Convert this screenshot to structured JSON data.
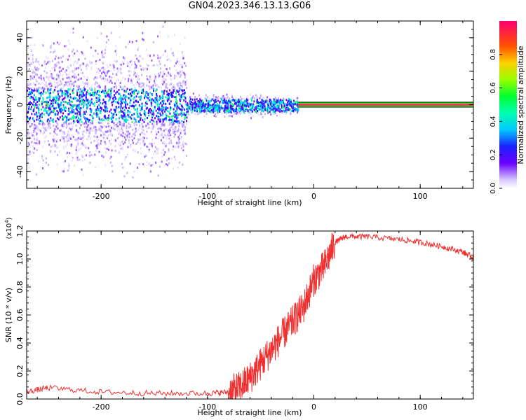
{
  "title": "GN04.2023.346.13.13.G06",
  "colors": {
    "axis": "#000000",
    "snr_line": "#f03030",
    "spectral_band": "#ff2d55"
  },
  "colorbar": {
    "label": "Normalized spectral amplitude",
    "range": [
      0,
      1
    ],
    "ticks": [
      "0.0",
      "0.2",
      "0.4",
      "0.6",
      "0.8"
    ],
    "tick_values": [
      0.0,
      0.2,
      0.4,
      0.6,
      0.8
    ],
    "colormap": "rainbow"
  },
  "chart_data": [
    {
      "type": "heatmap",
      "name": "spectrogram",
      "xlabel": "Height of straight line (km)",
      "ylabel": "Frequency (Hz)",
      "xlim": [
        -270,
        150
      ],
      "ylim": [
        -50,
        50
      ],
      "x_ticks": [
        "-200",
        "-100",
        "0",
        "100"
      ],
      "x_tick_values": [
        -200,
        -100,
        0,
        100
      ],
      "y_ticks": [
        "-40",
        "-20",
        "0",
        "20",
        "40"
      ],
      "y_tick_values": [
        -40,
        -20,
        0,
        20,
        40
      ],
      "description_regions": [
        {
          "x": [
            -270,
            -120
          ],
          "freq_spread": 50,
          "core_spread": 10,
          "amplitude": 0.2
        },
        {
          "x": [
            -120,
            -15
          ],
          "freq_spread": 8,
          "core_spread": 4,
          "amplitude": 0.6
        },
        {
          "x": [
            -15,
            150
          ],
          "freq_spread": 1.5,
          "core_spread": 1,
          "amplitude": 0.9
        }
      ]
    },
    {
      "type": "line",
      "name": "snr",
      "xlabel": "Height of straight line (km)",
      "ylabel": "SNR (10 * v/v)",
      "multiplier_label": "(x10",
      "multiplier_exp": "4",
      "multiplier_close": ")",
      "xlim": [
        -270,
        150
      ],
      "ylim": [
        0.0,
        1.2
      ],
      "x_ticks": [
        "-200",
        "-100",
        "0",
        "100"
      ],
      "x_tick_values": [
        -200,
        -100,
        0,
        100
      ],
      "y_ticks": [
        "0.0",
        "0.2",
        "0.4",
        "0.6",
        "0.8",
        "1.0",
        "1.2"
      ],
      "y_tick_values": [
        0.0,
        0.2,
        0.4,
        0.6,
        0.8,
        1.0,
        1.2
      ],
      "x": [
        -270,
        -250,
        -200,
        -150,
        -100,
        -80,
        -70,
        -60,
        -50,
        -40,
        -30,
        -20,
        -10,
        0,
        10,
        20,
        30,
        50,
        80,
        100,
        120,
        140,
        150
      ],
      "y": [
        0.05,
        0.08,
        0.05,
        0.04,
        0.04,
        0.05,
        0.08,
        0.15,
        0.25,
        0.35,
        0.45,
        0.55,
        0.65,
        0.85,
        0.95,
        1.12,
        1.16,
        1.16,
        1.14,
        1.12,
        1.09,
        1.05,
        1.01
      ]
    }
  ]
}
